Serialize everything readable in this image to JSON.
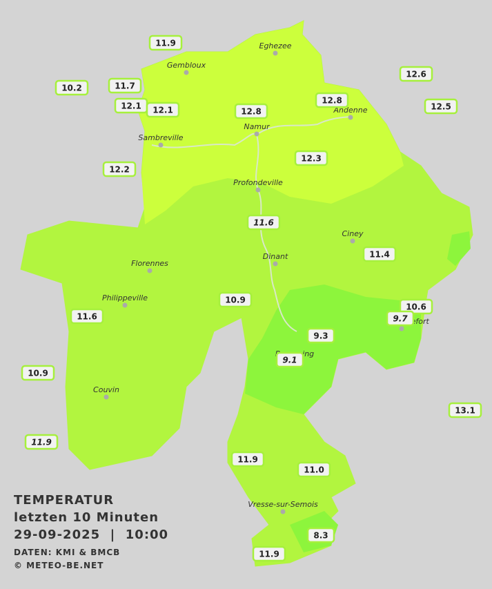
{
  "header": {
    "title": "TEMPERATUR",
    "subtitle": "letzten 10 Minuten",
    "datetime": "29-09-2025  |  10:00",
    "source": "DATEN: KMI & BMCB",
    "credit": "© METEO-BE.NET"
  },
  "towns": [
    {
      "label": "Eghezee"
    },
    {
      "label": "Gembloux"
    },
    {
      "label": "Andenne"
    },
    {
      "label": "Namur"
    },
    {
      "label": "Sambreville"
    },
    {
      "label": "Profondeville"
    },
    {
      "label": "Ciney"
    },
    {
      "label": "Dinant"
    },
    {
      "label": "Florennes"
    },
    {
      "label": "Philippeville"
    },
    {
      "label": "Rochefort"
    },
    {
      "label": "Beauraing"
    },
    {
      "label": "Couvin"
    },
    {
      "label": "Vresse-sur-Semois"
    }
  ],
  "stations": [
    {
      "label": "11.9"
    },
    {
      "label": "11.7"
    },
    {
      "label": "10.2"
    },
    {
      "label": "12.1"
    },
    {
      "label": "12.1"
    },
    {
      "label": "12.8"
    },
    {
      "label": "12.8"
    },
    {
      "label": "12.6"
    },
    {
      "label": "12.5"
    },
    {
      "label": "12.3"
    },
    {
      "label": "12.2"
    },
    {
      "label": "11.6",
      "italic": true
    },
    {
      "label": "11.4"
    },
    {
      "label": "10.9"
    },
    {
      "label": "11.6"
    },
    {
      "label": "10.6"
    },
    {
      "label": "9.7",
      "italic": true
    },
    {
      "label": "9.3"
    },
    {
      "label": "9.1",
      "italic": true
    },
    {
      "label": "10.9"
    },
    {
      "label": "13.1"
    },
    {
      "label": "11.9",
      "italic": true
    },
    {
      "label": "11.9"
    },
    {
      "label": "11.0"
    },
    {
      "label": "8.3"
    },
    {
      "label": "11.9"
    }
  ]
}
